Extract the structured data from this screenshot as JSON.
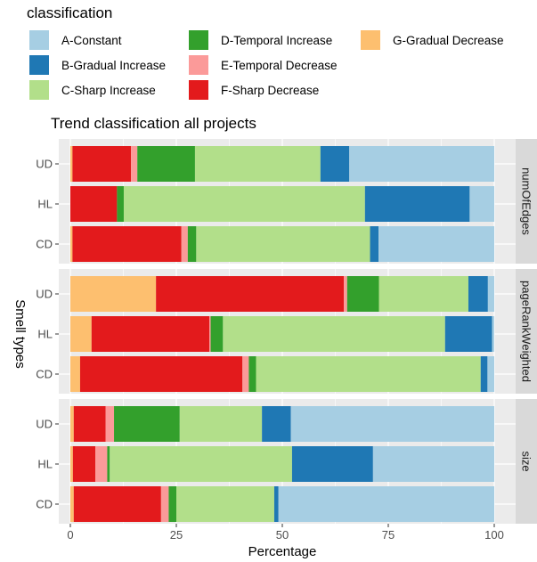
{
  "chart_data": {
    "type": "bar",
    "orientation": "horizontal",
    "stacked": true,
    "title": "Trend classification all projects",
    "xlabel": "Percentage",
    "ylabel": "Smell types",
    "xlim": [
      0,
      100
    ],
    "xticks": [
      0,
      25,
      50,
      75,
      100
    ],
    "legend": {
      "title": "classification",
      "position": "top",
      "entries": [
        {
          "key": "A",
          "label": "A-Constant",
          "color": "#a6cee3"
        },
        {
          "key": "B",
          "label": "B-Gradual Increase",
          "color": "#1f78b4"
        },
        {
          "key": "C",
          "label": "C-Sharp Increase",
          "color": "#b2df8a"
        },
        {
          "key": "D",
          "label": "D-Temporal Increase",
          "color": "#33a02c"
        },
        {
          "key": "E",
          "label": "E-Temporal Decrease",
          "color": "#fb9a99"
        },
        {
          "key": "F",
          "label": "F-Sharp Decrease",
          "color": "#e31a1c"
        },
        {
          "key": "G",
          "label": "G-Gradual Decrease",
          "color": "#fdbf6f"
        }
      ]
    },
    "stack_order": [
      "G",
      "F",
      "E",
      "D",
      "C",
      "B",
      "A"
    ],
    "categories": [
      "UD",
      "HL",
      "CD"
    ],
    "panels": [
      {
        "facet": "numOfEdges",
        "bars": [
          {
            "category": "UD",
            "values": {
              "G": 0.5,
              "F": 13.8,
              "E": 1.5,
              "D": 13.6,
              "C": 29.6,
              "B": 6.8,
              "A": 34.2
            }
          },
          {
            "category": "HL",
            "values": {
              "G": 0.0,
              "F": 11.0,
              "E": 0.0,
              "D": 1.6,
              "C": 56.9,
              "B": 24.7,
              "A": 5.8
            }
          },
          {
            "category": "CD",
            "values": {
              "G": 0.5,
              "F": 25.7,
              "E": 1.5,
              "D": 2.0,
              "C": 41.0,
              "B": 2.0,
              "A": 27.3
            }
          }
        ]
      },
      {
        "facet": "pageRankWeighted",
        "bars": [
          {
            "category": "UD",
            "values": {
              "G": 20.2,
              "F": 44.3,
              "E": 0.8,
              "D": 7.5,
              "C": 21.1,
              "B": 4.6,
              "A": 1.5
            }
          },
          {
            "category": "HL",
            "values": {
              "G": 5.0,
              "F": 27.8,
              "E": 0.3,
              "D": 2.9,
              "C": 52.4,
              "B": 11.1,
              "A": 0.5
            }
          },
          {
            "category": "CD",
            "values": {
              "G": 2.3,
              "F": 38.3,
              "E": 1.5,
              "D": 1.7,
              "C": 53.0,
              "B": 1.6,
              "A": 1.6
            }
          }
        ]
      },
      {
        "facet": "size",
        "bars": [
          {
            "category": "UD",
            "values": {
              "G": 0.8,
              "F": 7.5,
              "E": 2.0,
              "D": 15.5,
              "C": 19.4,
              "B": 6.8,
              "A": 48.0
            }
          },
          {
            "category": "HL",
            "values": {
              "G": 0.6,
              "F": 5.3,
              "E": 2.8,
              "D": 0.6,
              "C": 43.0,
              "B": 19.1,
              "A": 28.6
            }
          },
          {
            "category": "CD",
            "values": {
              "G": 0.8,
              "F": 20.6,
              "E": 1.8,
              "D": 1.8,
              "C": 23.1,
              "B": 1.0,
              "A": 50.9
            }
          }
        ]
      }
    ]
  }
}
